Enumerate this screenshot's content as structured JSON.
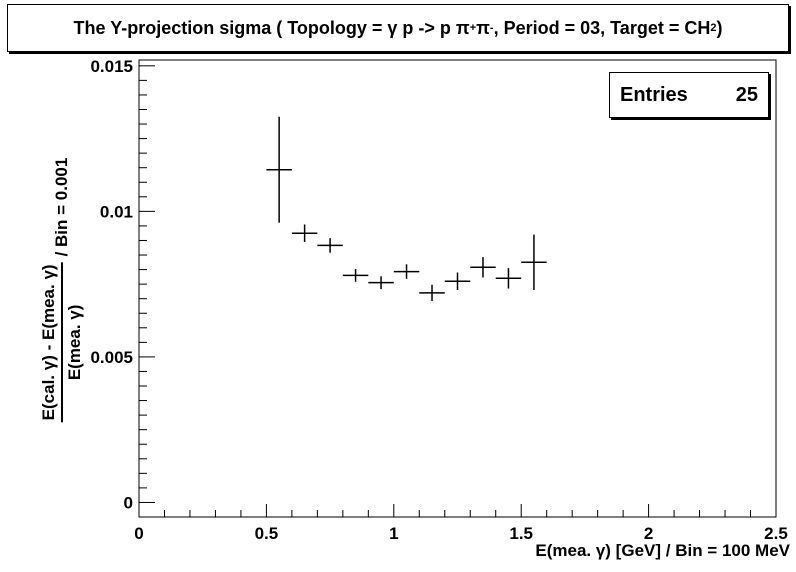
{
  "title": {
    "part1": "The Y-projection sigma ( Topology = γ p -> p π",
    "sup1": "+",
    "part2": " π",
    "sup2": "-",
    "part3": ", Period = 03, Target = CH",
    "sub": "2",
    "part4": " )"
  },
  "stats": {
    "label": "Entries",
    "value": "25"
  },
  "chart_data": {
    "type": "scatter",
    "xlim": [
      0,
      2.5
    ],
    "ylim": [
      -0.0005,
      0.0152
    ],
    "xticks": [
      0,
      0.5,
      1,
      1.5,
      2,
      2.5
    ],
    "xtick_labels": [
      "0",
      "0.5",
      "1",
      "1.5",
      "2",
      "2.5"
    ],
    "yticks": [
      0,
      0.005,
      0.01,
      0.015
    ],
    "ytick_labels": [
      "0",
      "0.005",
      "0.01",
      "0.015"
    ],
    "xlabel": "E(mea. γ) [GeV] / Bin = 100 MeV",
    "ylabel_numerator": "E(cal. γ) - E(mea. γ)",
    "ylabel_denominator": "E(mea. γ)",
    "ylabel_suffix": "/ Bin = 0.001",
    "bin_width": 0.1,
    "points": [
      {
        "x": 0.55,
        "y": 0.01143,
        "err": 0.00182
      },
      {
        "x": 0.65,
        "y": 0.00925,
        "err": 0.0003
      },
      {
        "x": 0.75,
        "y": 0.00883,
        "err": 0.00025
      },
      {
        "x": 0.85,
        "y": 0.0078,
        "err": 0.00022
      },
      {
        "x": 0.95,
        "y": 0.00755,
        "err": 0.00022
      },
      {
        "x": 1.05,
        "y": 0.00793,
        "err": 0.00025
      },
      {
        "x": 1.15,
        "y": 0.0072,
        "err": 0.00028
      },
      {
        "x": 1.25,
        "y": 0.0076,
        "err": 0.0003
      },
      {
        "x": 1.35,
        "y": 0.00808,
        "err": 0.00035
      },
      {
        "x": 1.45,
        "y": 0.0077,
        "err": 0.00035
      },
      {
        "x": 1.55,
        "y": 0.00825,
        "err": 0.00095
      }
    ]
  }
}
